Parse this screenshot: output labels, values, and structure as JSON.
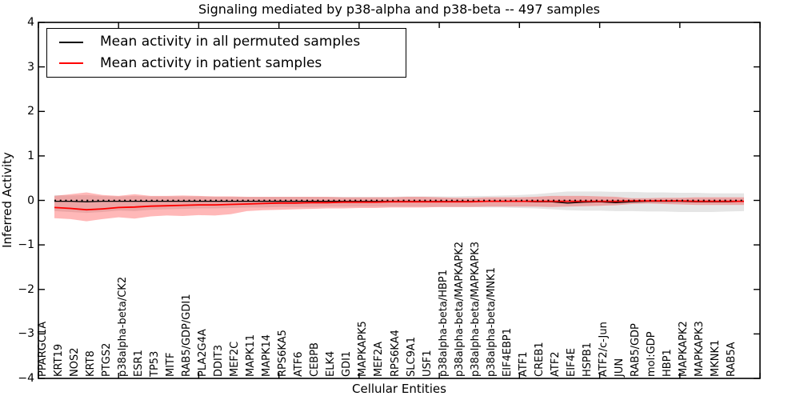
{
  "chart_data": {
    "type": "line",
    "title": "Signaling mediated by p38-alpha and p38-beta -- 497 samples",
    "xlabel": "Cellular Entities",
    "ylabel": "Inferred Activity",
    "ylim": [
      -4,
      4
    ],
    "yticks": [
      4,
      3,
      2,
      1,
      0,
      -1,
      -2,
      -3,
      -4
    ],
    "grid": false,
    "legend_position": "upper left",
    "zero_line": {
      "y": 0,
      "style": "dashed",
      "color": "#000000"
    },
    "categories": [
      "PPARGC1A",
      "KRT19",
      "NOS2",
      "KRT8",
      "PTGS2",
      "p38alpha-beta/CK2",
      "ESR1",
      "TP53",
      "MITF",
      "RAB5/GDP/GDI1",
      "PLA2G4A",
      "DDIT3",
      "MEF2C",
      "MAPK11",
      "MAPK14",
      "RPS6KA5",
      "ATF6",
      "CEBPB",
      "ELK4",
      "GDI1",
      "MAPKAPK5",
      "MEF2A",
      "RPS6KA4",
      "SLC9A1",
      "USF1",
      "p38alpha-beta/HBP1",
      "p38alpha-beta/MAPKAPK2",
      "p38alpha-beta/MAPKAPK3",
      "p38alpha-beta/MNK1",
      "EIF4EBP1",
      "ATF1",
      "CREB1",
      "ATF2",
      "EIF4E",
      "HSPB1",
      "ATF2/c-Jun",
      "JUN",
      "RAB5/GDP",
      "mol:GDP",
      "HBP1",
      "MAPKAPK2",
      "MAPKAPK3",
      "MKNK1",
      "RAB5A"
    ],
    "series": [
      {
        "name": "Mean activity in all permuted samples",
        "color": "#000000",
        "line_width": 1.3,
        "values": [
          -0.02,
          -0.02,
          -0.03,
          -0.02,
          -0.02,
          -0.02,
          -0.02,
          -0.02,
          -0.02,
          -0.02,
          -0.02,
          -0.02,
          -0.02,
          -0.02,
          -0.02,
          -0.02,
          -0.02,
          -0.02,
          -0.02,
          -0.02,
          -0.02,
          -0.02,
          -0.02,
          -0.02,
          -0.02,
          -0.02,
          -0.02,
          -0.02,
          -0.02,
          -0.02,
          -0.03,
          -0.03,
          -0.06,
          -0.04,
          -0.03,
          -0.05,
          -0.03,
          -0.02,
          -0.02,
          -0.02,
          -0.03,
          -0.03,
          -0.03,
          -0.02
        ],
        "band": {
          "fill": "rgba(0,0,0,0.10)",
          "upper": [
            0.12,
            0.11,
            0.12,
            0.1,
            0.09,
            0.1,
            0.09,
            0.09,
            0.09,
            0.09,
            0.08,
            0.08,
            0.08,
            0.08,
            0.08,
            0.08,
            0.08,
            0.08,
            0.08,
            0.08,
            0.08,
            0.08,
            0.09,
            0.09,
            0.09,
            0.09,
            0.1,
            0.1,
            0.11,
            0.12,
            0.14,
            0.17,
            0.2,
            0.2,
            0.2,
            0.19,
            0.19,
            0.18,
            0.18,
            0.17,
            0.17,
            0.16,
            0.16,
            0.16
          ],
          "lower": [
            -0.24,
            -0.26,
            -0.28,
            -0.26,
            -0.23,
            -0.24,
            -0.21,
            -0.2,
            -0.19,
            -0.18,
            -0.18,
            -0.17,
            -0.16,
            -0.16,
            -0.15,
            -0.15,
            -0.15,
            -0.14,
            -0.14,
            -0.14,
            -0.14,
            -0.14,
            -0.14,
            -0.14,
            -0.15,
            -0.15,
            -0.15,
            -0.16,
            -0.16,
            -0.17,
            -0.18,
            -0.2,
            -0.22,
            -0.23,
            -0.23,
            -0.24,
            -0.24,
            -0.25,
            -0.25,
            -0.26,
            -0.26,
            -0.26,
            -0.25,
            -0.24
          ]
        }
      },
      {
        "name": "Mean activity in patient samples",
        "color": "#ff0000",
        "line_width": 1.8,
        "values": [
          -0.16,
          -0.18,
          -0.21,
          -0.19,
          -0.16,
          -0.15,
          -0.13,
          -0.12,
          -0.11,
          -0.1,
          -0.1,
          -0.09,
          -0.08,
          -0.07,
          -0.06,
          -0.06,
          -0.05,
          -0.05,
          -0.04,
          -0.04,
          -0.04,
          -0.03,
          -0.03,
          -0.03,
          -0.03,
          -0.03,
          -0.03,
          -0.02,
          -0.02,
          -0.02,
          -0.02,
          -0.02,
          -0.02,
          -0.02,
          -0.02,
          -0.02,
          -0.01,
          -0.01,
          -0.01,
          -0.01,
          -0.02,
          -0.02,
          -0.02,
          -0.02
        ],
        "band": {
          "fill": "rgba(255,0,0,0.28)",
          "upper": [
            0.1,
            0.14,
            0.18,
            0.12,
            0.1,
            0.14,
            0.1,
            0.1,
            0.11,
            0.1,
            0.09,
            0.09,
            0.08,
            0.08,
            0.08,
            0.08,
            0.08,
            0.08,
            0.07,
            0.07,
            0.07,
            0.07,
            0.08,
            0.08,
            0.07,
            0.06,
            0.06,
            0.07,
            0.07,
            0.07,
            0.08,
            0.1,
            0.1,
            0.1,
            0.09,
            0.08,
            0.05,
            0.05,
            0.06,
            0.06,
            0.07,
            0.07,
            0.07,
            0.07
          ],
          "lower": [
            -0.4,
            -0.42,
            -0.47,
            -0.42,
            -0.38,
            -0.41,
            -0.36,
            -0.34,
            -0.35,
            -0.33,
            -0.34,
            -0.31,
            -0.24,
            -0.22,
            -0.21,
            -0.2,
            -0.19,
            -0.18,
            -0.18,
            -0.17,
            -0.17,
            -0.16,
            -0.16,
            -0.16,
            -0.15,
            -0.15,
            -0.15,
            -0.14,
            -0.14,
            -0.14,
            -0.14,
            -0.15,
            -0.14,
            -0.13,
            -0.12,
            -0.11,
            -0.08,
            -0.07,
            -0.08,
            -0.09,
            -0.1,
            -0.1,
            -0.1,
            -0.1
          ]
        }
      }
    ]
  }
}
